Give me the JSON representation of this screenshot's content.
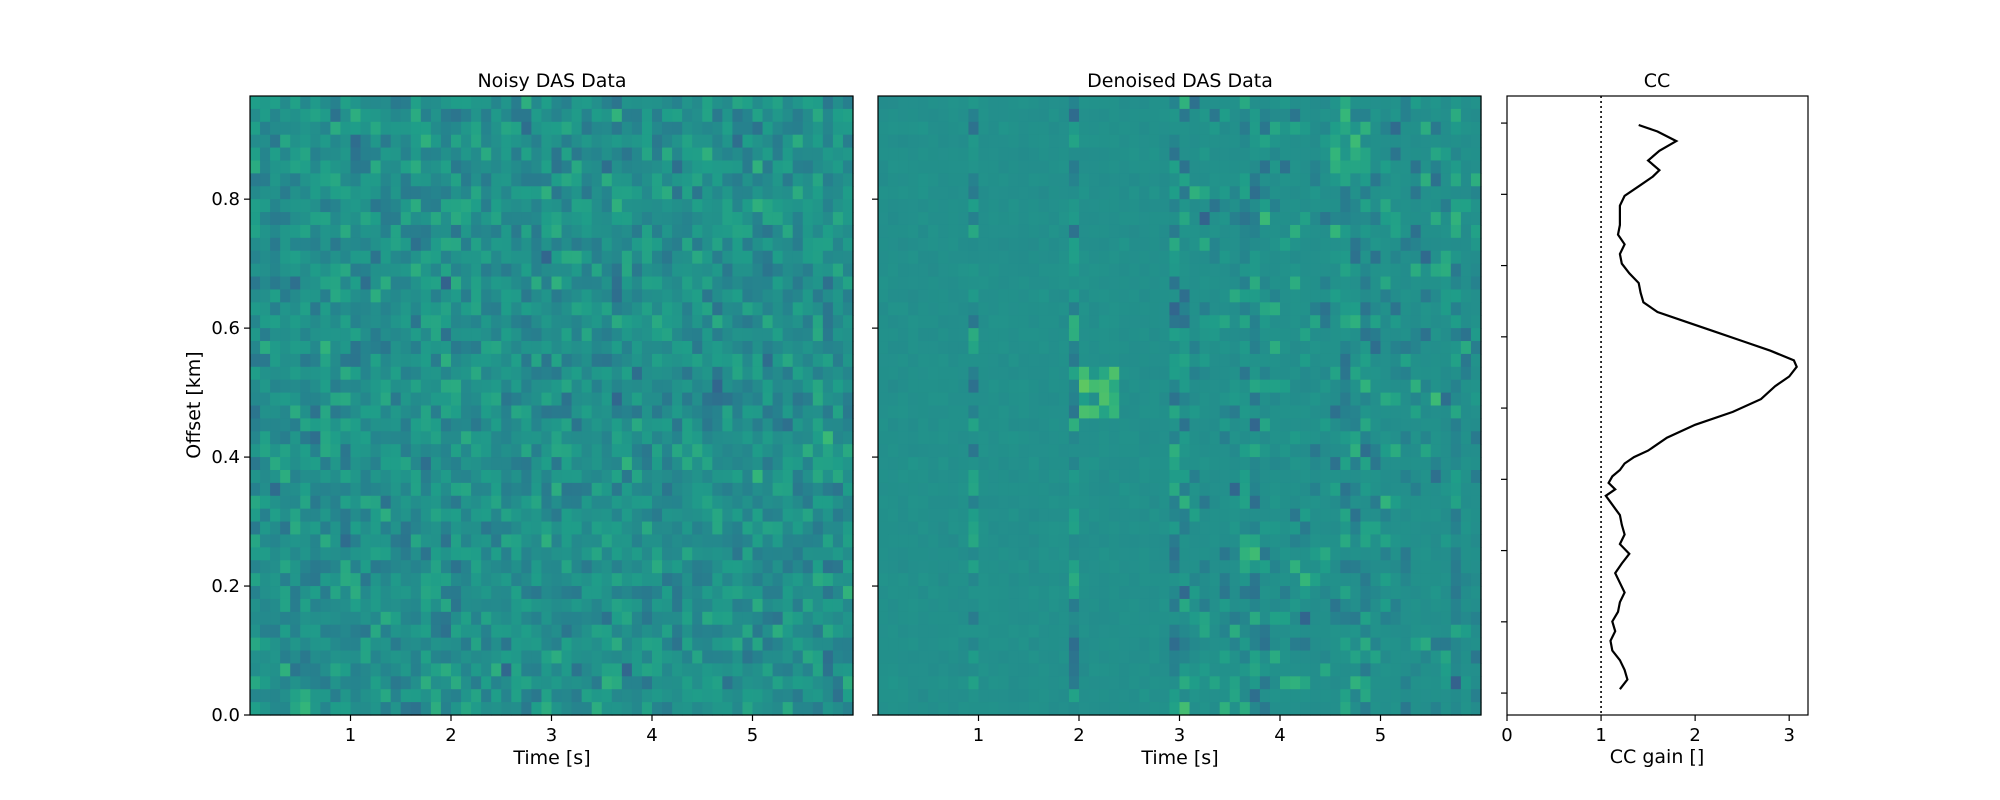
{
  "chart_data": [
    {
      "type": "heatmap",
      "title": "Noisy DAS Data",
      "xlabel": "Time [s]",
      "ylabel": "Offset [km]",
      "xlim": [
        0,
        6.0
      ],
      "ylim": [
        0,
        0.96
      ],
      "xticks": [
        1,
        2,
        3,
        4,
        5
      ],
      "xtick_labels": [
        "1",
        "2",
        "3",
        "4",
        "5"
      ],
      "yticks": [
        0.0,
        0.2,
        0.4,
        0.6,
        0.8
      ],
      "ytick_labels": [
        "0.0",
        "0.2",
        "0.4",
        "0.6",
        "0.8"
      ],
      "colormap": "viridis",
      "grid": false
    },
    {
      "type": "heatmap",
      "title": "Denoised DAS Data",
      "xlabel": "Time [s]",
      "xlim": [
        0,
        6.0
      ],
      "ylim": [
        0,
        0.96
      ],
      "xticks": [
        1,
        2,
        3,
        4,
        5
      ],
      "xtick_labels": [
        "1",
        "2",
        "3",
        "4",
        "5"
      ],
      "colormap": "viridis",
      "grid": false
    },
    {
      "type": "line",
      "title": "CC",
      "xlabel": "CC gain []",
      "xlim": [
        0,
        3.2
      ],
      "ylim": [
        0,
        0.96
      ],
      "xticks": [
        0,
        1,
        2,
        3
      ],
      "xtick_labels": [
        "0",
        "1",
        "2",
        "3"
      ],
      "reference_line": {
        "x": 1,
        "style": "dotted"
      },
      "series": [
        {
          "x": [
            1.2,
            1.28,
            1.25,
            1.2,
            1.12,
            1.1,
            1.15,
            1.12,
            1.18,
            1.2,
            1.25,
            1.2,
            1.15,
            1.22,
            1.3,
            1.2,
            1.25,
            1.22,
            1.2,
            1.15,
            1.1,
            1.05,
            1.15,
            1.08,
            1.12,
            1.2,
            1.25,
            1.35,
            1.5,
            1.7,
            2.0,
            2.4,
            2.7,
            2.85,
            3.0,
            3.08,
            3.05,
            2.8,
            2.5,
            2.2,
            1.9,
            1.6,
            1.45,
            1.42,
            1.4,
            1.3,
            1.22,
            1.2,
            1.25,
            1.18,
            1.2,
            1.2,
            1.2,
            1.25,
            1.4,
            1.55,
            1.62,
            1.5,
            1.62,
            1.8,
            1.6,
            1.4
          ],
          "y": [
            0.04,
            0.055,
            0.07,
            0.085,
            0.1,
            0.115,
            0.13,
            0.145,
            0.16,
            0.175,
            0.19,
            0.205,
            0.22,
            0.235,
            0.25,
            0.265,
            0.28,
            0.295,
            0.31,
            0.32,
            0.33,
            0.34,
            0.35,
            0.36,
            0.37,
            0.38,
            0.39,
            0.4,
            0.41,
            0.43,
            0.45,
            0.47,
            0.49,
            0.51,
            0.525,
            0.54,
            0.55,
            0.565,
            0.58,
            0.595,
            0.61,
            0.625,
            0.64,
            0.655,
            0.67,
            0.685,
            0.7,
            0.715,
            0.73,
            0.745,
            0.76,
            0.775,
            0.79,
            0.805,
            0.82,
            0.835,
            0.845,
            0.86,
            0.875,
            0.89,
            0.905,
            0.915
          ]
        }
      ]
    }
  ]
}
